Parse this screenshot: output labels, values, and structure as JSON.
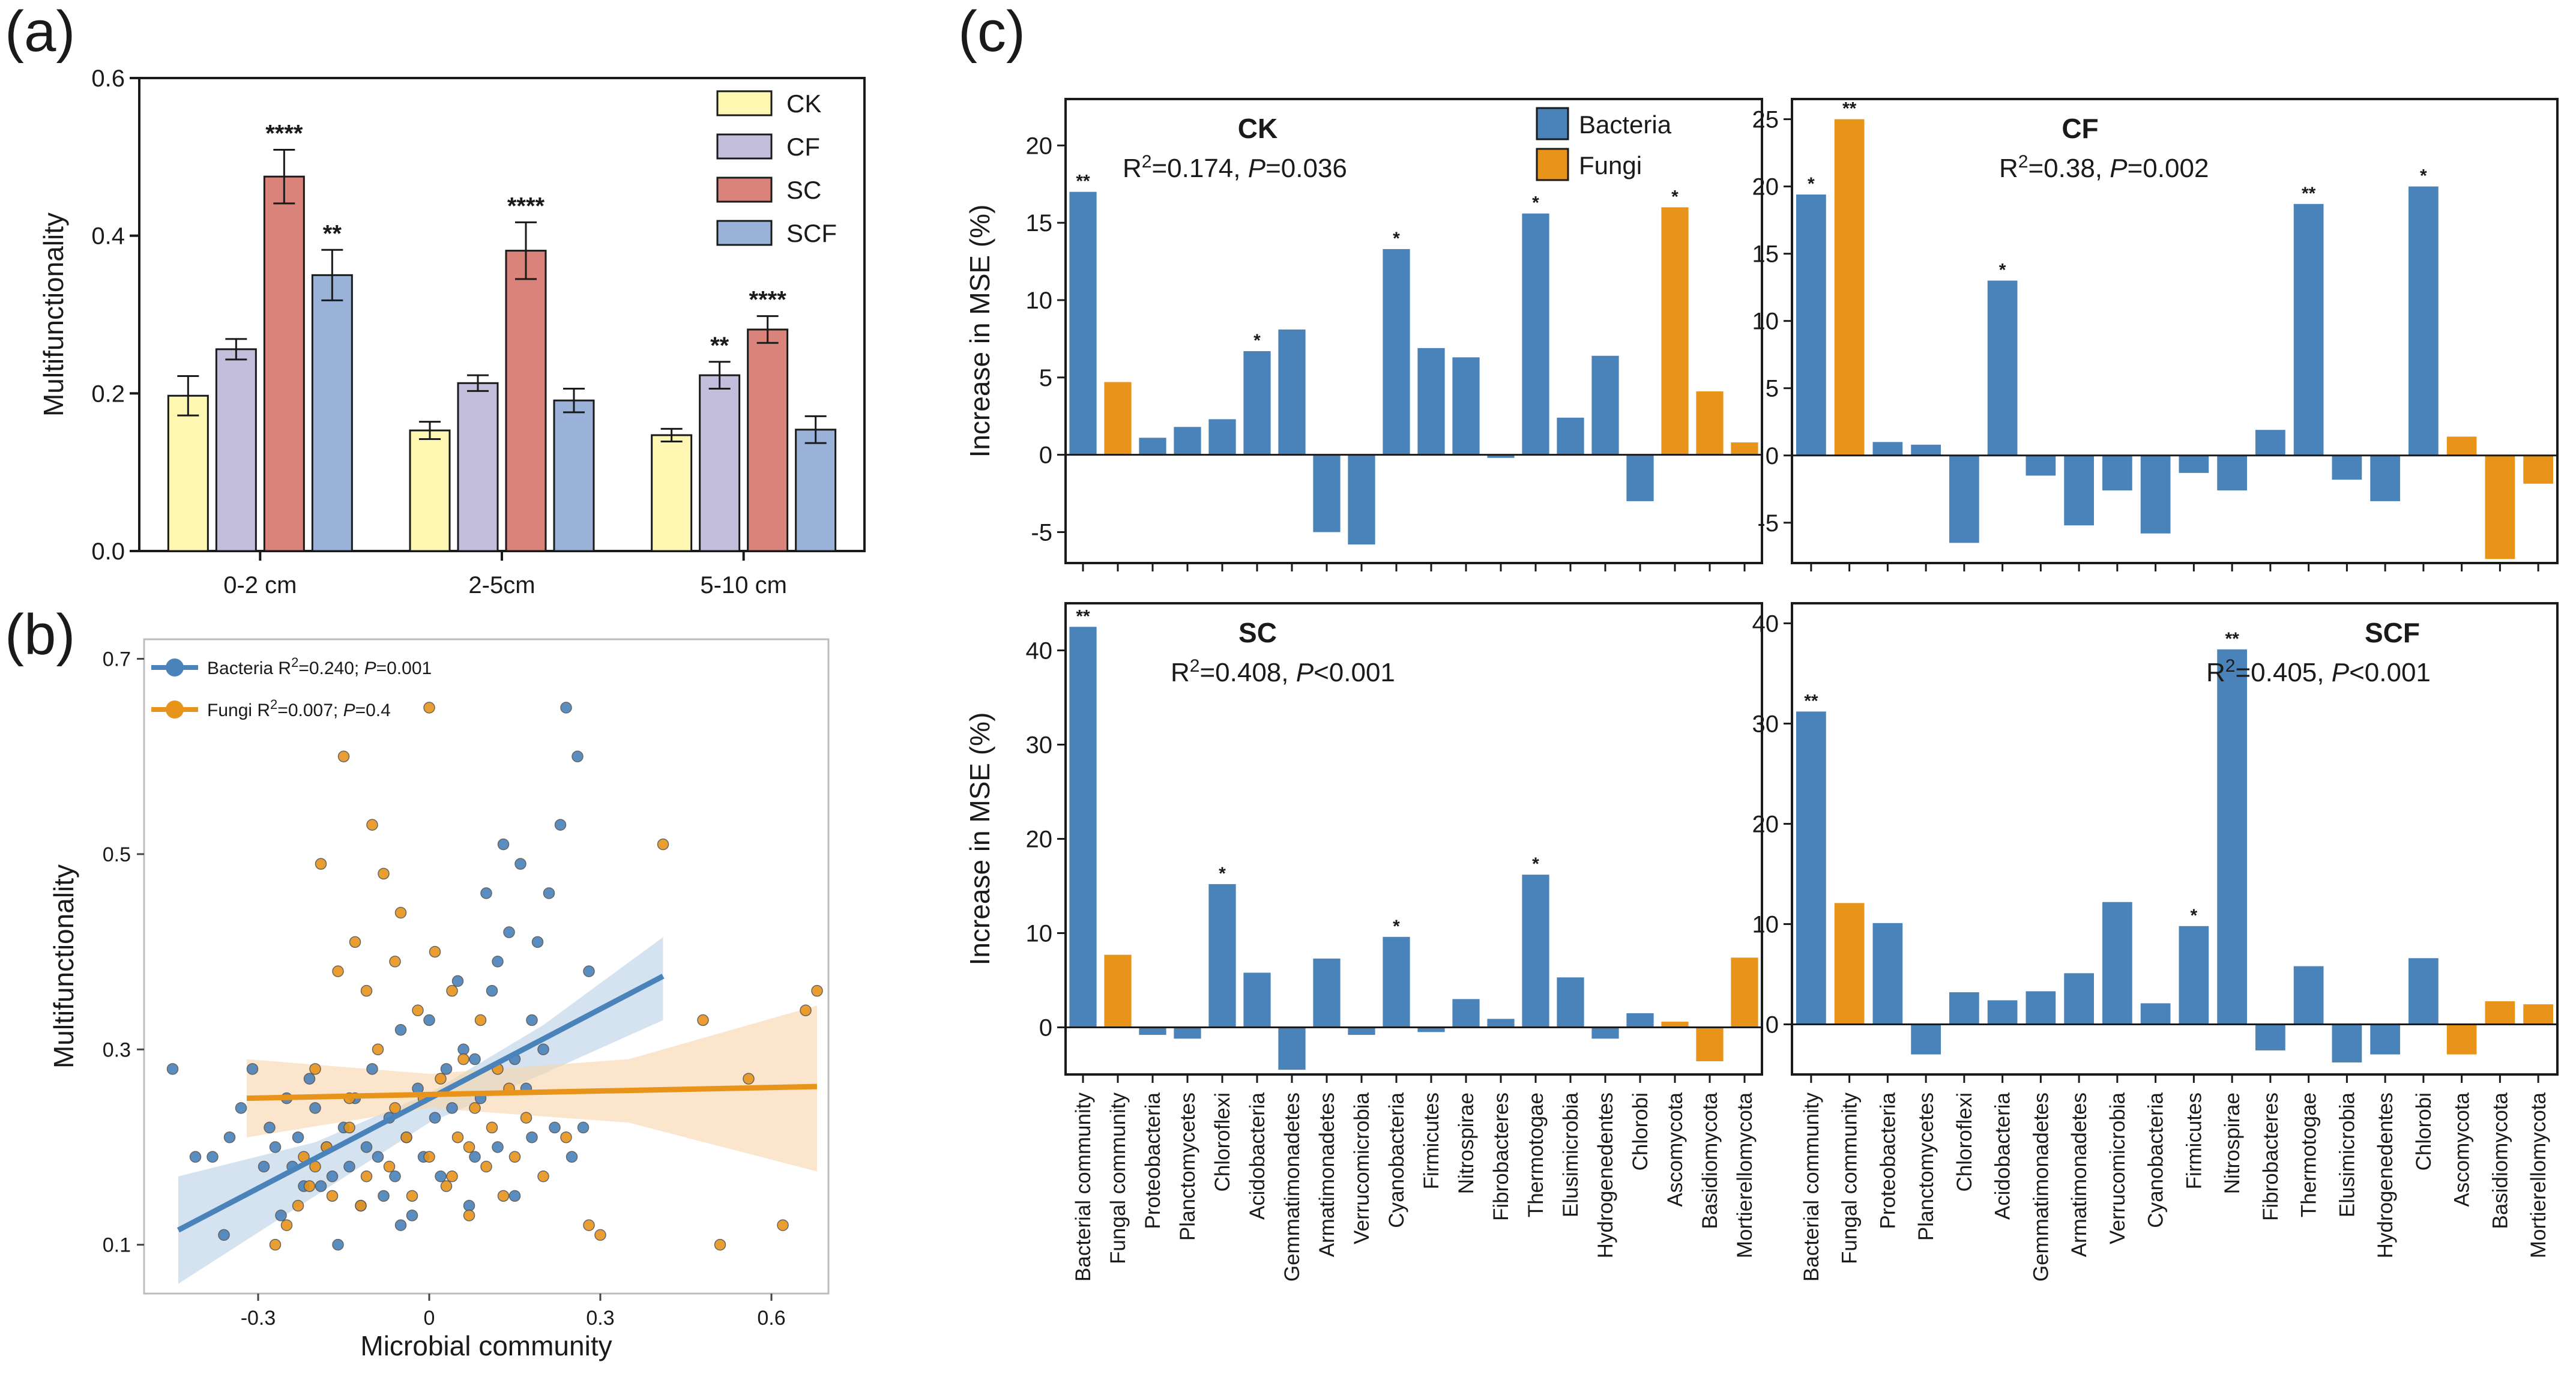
{
  "panel_labels": [
    "(a)",
    "(b)",
    "(c)"
  ],
  "colors": {
    "CK": "#fdf7b2",
    "CF": "#c3bedc",
    "SC": "#d9837a",
    "SCF": "#9bb2d8",
    "bacteria": "#4a82ba",
    "fungi": "#e8931a",
    "bacteria_band": "#b9d0e6",
    "fungi_band": "#f8d6ab",
    "axis": "#1a1a1a"
  },
  "chart_data": [
    {
      "id": "a",
      "type": "bar",
      "title": "",
      "xlabel": "",
      "ylabel": "Multifunctionality",
      "ylim": [
        0,
        0.6
      ],
      "yticks": [
        "0.0",
        "0.2",
        "0.4",
        "0.6"
      ],
      "yticks_values": [
        0,
        0.2,
        0.4,
        0.6
      ],
      "categories": [
        "0-2 cm",
        "2-5cm",
        "5-10 cm"
      ],
      "legend": "top-right",
      "series": [
        {
          "name": "CK",
          "values": [
            0.197,
            0.153,
            0.147
          ],
          "errors": [
            0.025,
            0.011,
            0.008
          ],
          "sig": [
            "",
            "",
            ""
          ]
        },
        {
          "name": "CF",
          "values": [
            0.256,
            0.213,
            0.223
          ],
          "errors": [
            0.013,
            0.01,
            0.017
          ],
          "sig": [
            "",
            "",
            "**"
          ]
        },
        {
          "name": "SC",
          "values": [
            0.475,
            0.381,
            0.281
          ],
          "errors": [
            0.034,
            0.036,
            0.017
          ],
          "sig": [
            "****",
            "****",
            "****"
          ]
        },
        {
          "name": "SCF",
          "values": [
            0.35,
            0.191,
            0.154
          ],
          "errors": [
            0.032,
            0.015,
            0.017
          ],
          "sig": [
            "**",
            "",
            ""
          ]
        }
      ]
    },
    {
      "id": "b",
      "type": "scatter",
      "xlabel": "Microbial community",
      "ylabel": "Multifunctionality",
      "xlim": [
        -0.5,
        0.7
      ],
      "ylim": [
        0.05,
        0.72
      ],
      "xticks": [
        "-0.3",
        "0",
        "0.3",
        "0.6"
      ],
      "xticks_values": [
        -0.3,
        0,
        0.3,
        0.6
      ],
      "yticks": [
        "0.1",
        "0.3",
        "0.5",
        "0.7"
      ],
      "yticks_values": [
        0.1,
        0.3,
        0.5,
        0.7
      ],
      "legend": "top-left",
      "series": [
        {
          "name": "Bacteria",
          "legend_prefix": "Bacteria R",
          "legend_stat": "=0.240;",
          "legend_p": "=0.001",
          "fit": {
            "x": [
              -0.44,
              0.41
            ],
            "y": [
              0.115,
              0.375
            ]
          },
          "band": {
            "x": [
              -0.44,
              -0.2,
              0,
              0.2,
              0.41
            ],
            "lower": [
              0.06,
              0.15,
              0.225,
              0.275,
              0.33
            ],
            "upper": [
              0.17,
              0.205,
              0.255,
              0.325,
              0.415
            ]
          },
          "points": [
            [
              -0.45,
              0.28
            ],
            [
              -0.41,
              0.19
            ],
            [
              -0.38,
              0.19
            ],
            [
              -0.36,
              0.11
            ],
            [
              -0.35,
              0.21
            ],
            [
              -0.33,
              0.24
            ],
            [
              -0.31,
              0.28
            ],
            [
              -0.29,
              0.18
            ],
            [
              -0.28,
              0.22
            ],
            [
              -0.27,
              0.2
            ],
            [
              -0.26,
              0.13
            ],
            [
              -0.25,
              0.25
            ],
            [
              -0.24,
              0.18
            ],
            [
              -0.23,
              0.21
            ],
            [
              -0.22,
              0.16
            ],
            [
              -0.21,
              0.27
            ],
            [
              -0.2,
              0.24
            ],
            [
              -0.19,
              0.16
            ],
            [
              -0.18,
              0.2
            ],
            [
              -0.17,
              0.17
            ],
            [
              -0.16,
              0.1
            ],
            [
              -0.15,
              0.22
            ],
            [
              -0.14,
              0.18
            ],
            [
              -0.13,
              0.25
            ],
            [
              -0.12,
              0.14
            ],
            [
              -0.11,
              0.2
            ],
            [
              -0.1,
              0.28
            ],
            [
              -0.09,
              0.19
            ],
            [
              -0.08,
              0.15
            ],
            [
              -0.07,
              0.23
            ],
            [
              -0.06,
              0.17
            ],
            [
              -0.05,
              0.32
            ],
            [
              -0.04,
              0.21
            ],
            [
              -0.03,
              0.13
            ],
            [
              -0.02,
              0.26
            ],
            [
              -0.01,
              0.19
            ],
            [
              0,
              0.33
            ],
            [
              0.01,
              0.23
            ],
            [
              0.02,
              0.17
            ],
            [
              0.03,
              0.28
            ],
            [
              0.04,
              0.24
            ],
            [
              0.05,
              0.37
            ],
            [
              0.06,
              0.3
            ],
            [
              0.07,
              0.14
            ],
            [
              0.08,
              0.29
            ],
            [
              0.09,
              0.25
            ],
            [
              0.1,
              0.46
            ],
            [
              0.11,
              0.36
            ],
            [
              0.12,
              0.2
            ],
            [
              0.13,
              0.51
            ],
            [
              0.14,
              0.42
            ],
            [
              0.15,
              0.29
            ],
            [
              0.16,
              0.49
            ],
            [
              0.17,
              0.26
            ],
            [
              0.18,
              0.33
            ],
            [
              0.19,
              0.41
            ],
            [
              0.2,
              0.3
            ],
            [
              0.21,
              0.46
            ],
            [
              0.22,
              0.22
            ],
            [
              0.23,
              0.53
            ],
            [
              0.24,
              0.65
            ],
            [
              0.25,
              0.19
            ],
            [
              0.26,
              0.6
            ],
            [
              0.27,
              0.22
            ],
            [
              0.28,
              0.38
            ],
            [
              0.15,
              0.15
            ],
            [
              -0.05,
              0.12
            ],
            [
              0.12,
              0.39
            ],
            [
              0.18,
              0.21
            ],
            [
              0.08,
              0.19
            ]
          ]
        },
        {
          "name": "Fungi",
          "legend_prefix": "Fungi R",
          "legend_stat": "=0.007;",
          "legend_p": "=0.4",
          "fit": {
            "x": [
              -0.32,
              0.68
            ],
            "y": [
              0.25,
              0.262
            ]
          },
          "band": {
            "x": [
              -0.32,
              0,
              0.35,
              0.68
            ],
            "lower": [
              0.21,
              0.24,
              0.225,
              0.175
            ],
            "upper": [
              0.29,
              0.275,
              0.29,
              0.345
            ]
          },
          "points": [
            [
              -0.27,
              0.1
            ],
            [
              -0.25,
              0.12
            ],
            [
              -0.23,
              0.14
            ],
            [
              -0.21,
              0.16
            ],
            [
              -0.2,
              0.28
            ],
            [
              -0.19,
              0.49
            ],
            [
              -0.18,
              0.2
            ],
            [
              -0.17,
              0.15
            ],
            [
              -0.16,
              0.38
            ],
            [
              -0.15,
              0.6
            ],
            [
              -0.14,
              0.22
            ],
            [
              -0.13,
              0.41
            ],
            [
              -0.12,
              0.14
            ],
            [
              -0.11,
              0.36
            ],
            [
              -0.1,
              0.53
            ],
            [
              -0.09,
              0.3
            ],
            [
              -0.08,
              0.48
            ],
            [
              -0.07,
              0.18
            ],
            [
              -0.06,
              0.39
            ],
            [
              -0.05,
              0.44
            ],
            [
              -0.04,
              0.21
            ],
            [
              -0.03,
              0.15
            ],
            [
              -0.02,
              0.34
            ],
            [
              -0.01,
              0.25
            ],
            [
              0,
              0.19
            ],
            [
              0.01,
              0.4
            ],
            [
              0.02,
              0.27
            ],
            [
              0.03,
              0.16
            ],
            [
              0.04,
              0.36
            ],
            [
              0.05,
              0.21
            ],
            [
              0.06,
              0.29
            ],
            [
              0.07,
              0.13
            ],
            [
              0.08,
              0.24
            ],
            [
              0.09,
              0.33
            ],
            [
              0.1,
              0.18
            ],
            [
              0.11,
              0.22
            ],
            [
              0.12,
              0.28
            ],
            [
              0.13,
              0.15
            ],
            [
              0.14,
              0.26
            ],
            [
              0.15,
              0.19
            ],
            [
              0.17,
              0.23
            ],
            [
              0.2,
              0.17
            ],
            [
              0.24,
              0.21
            ],
            [
              0.28,
              0.12
            ],
            [
              0.3,
              0.11
            ],
            [
              0.41,
              0.51
            ],
            [
              0.48,
              0.33
            ],
            [
              0.51,
              0.1
            ],
            [
              0.56,
              0.27
            ],
            [
              0.62,
              0.12
            ],
            [
              0.66,
              0.34
            ],
            [
              0.68,
              0.36
            ],
            [
              0,
              0.65
            ],
            [
              -0.2,
              0.18
            ],
            [
              -0.22,
              0.19
            ],
            [
              -0.11,
              0.17
            ],
            [
              0.04,
              0.17
            ],
            [
              -0.14,
              0.25
            ],
            [
              0.07,
              0.2
            ],
            [
              -0.06,
              0.24
            ]
          ]
        }
      ]
    },
    {
      "id": "c",
      "type": "bar",
      "ylabel": "Increase in MSE (%)",
      "categories": [
        "Bacterial community",
        "Fungal community",
        "Proteobacteria",
        "Planctomycetes",
        "Chloroflexi",
        "Acidobacteria",
        "Gemmatimonadetes",
        "Armatimonadetes",
        "Verrucomicrobia",
        "Cyanobacteria",
        "Firmicutes",
        "Nitrospirae",
        "Fibrobacteres",
        "Thermotogae",
        "Elusimicrobia",
        "Hydrogenedentes",
        "Chlorobi",
        "Ascomycota",
        "Basidiomycota",
        "Mortierellomycota"
      ],
      "bar_groups": [
        "bacteria",
        "fungi",
        "bacteria",
        "bacteria",
        "bacteria",
        "bacteria",
        "bacteria",
        "bacteria",
        "bacteria",
        "bacteria",
        "bacteria",
        "bacteria",
        "bacteria",
        "bacteria",
        "bacteria",
        "bacteria",
        "bacteria",
        "fungi",
        "fungi",
        "fungi"
      ],
      "legend": "top-center",
      "legend_items": [
        "Bacteria",
        "Fungi"
      ],
      "panels": [
        {
          "name": "CK",
          "stat_r": "R",
          "stat_mid": "=0.174, ",
          "stat_p": "P",
          "stat_end": "=0.036",
          "ylim": [
            -7,
            23
          ],
          "yticks": [
            "-5",
            "0",
            "5",
            "10",
            "15",
            "20"
          ],
          "yticks_values": [
            -5,
            0,
            5,
            10,
            15,
            20
          ],
          "values": [
            17,
            4.7,
            1.1,
            1.8,
            2.3,
            6.7,
            8.1,
            -5.0,
            -5.8,
            13.3,
            6.9,
            6.3,
            -0.2,
            15.6,
            2.4,
            6.4,
            -3.0,
            16.0,
            4.1,
            0.8
          ],
          "sig": [
            "**",
            "",
            "",
            "",
            "",
            "*",
            "",
            "",
            "",
            "*",
            "",
            "",
            "",
            "*",
            "",
            "",
            "",
            "*",
            "",
            ""
          ]
        },
        {
          "name": "CF",
          "stat_r": "R",
          "stat_mid": "=0.38, ",
          "stat_p": "P",
          "stat_end": "=0.002",
          "ylim": [
            -8,
            26.5
          ],
          "yticks": [
            "-5",
            "0",
            "5",
            "10",
            "15",
            "20",
            "25"
          ],
          "yticks_values": [
            -5,
            0,
            5,
            10,
            15,
            20,
            25
          ],
          "values": [
            19.4,
            25.0,
            1.0,
            0.8,
            -6.5,
            13.0,
            -1.5,
            -5.2,
            -2.6,
            -5.8,
            -1.3,
            -2.6,
            1.9,
            18.7,
            -1.8,
            -3.4,
            20.0,
            1.4,
            -7.7,
            -2.1
          ],
          "sig": [
            "*",
            "**",
            "",
            "",
            "",
            "*",
            "",
            "",
            "",
            "",
            "",
            "",
            "",
            "**",
            "",
            "",
            "*",
            "",
            "",
            ""
          ]
        },
        {
          "name": "SC",
          "stat_r": "R",
          "stat_mid": "=0.408, ",
          "stat_p": "P",
          "stat_end": "<0.001",
          "ylim": [
            -5,
            45
          ],
          "yticks": [
            "0",
            "10",
            "20",
            "30",
            "40"
          ],
          "yticks_values": [
            0,
            10,
            20,
            30,
            40
          ],
          "values": [
            42.5,
            7.7,
            -0.8,
            -1.2,
            15.2,
            5.8,
            -4.5,
            7.3,
            -0.8,
            9.6,
            -0.5,
            3.0,
            0.9,
            16.2,
            5.3,
            -1.2,
            1.5,
            0.6,
            -3.6,
            7.4
          ],
          "sig": [
            "**",
            "",
            "",
            "",
            "*",
            "",
            "",
            "",
            "",
            "*",
            "",
            "",
            "",
            "*",
            "",
            "",
            "",
            "",
            "",
            ""
          ]
        },
        {
          "name": "SCF",
          "stat_r": "R",
          "stat_mid": "=0.405, ",
          "stat_p": "P",
          "stat_end": "<0.001",
          "ylim": [
            -5,
            42
          ],
          "yticks": [
            "0",
            "10",
            "20",
            "30",
            "40"
          ],
          "yticks_values": [
            0,
            10,
            20,
            30,
            40
          ],
          "values": [
            31.2,
            12.1,
            10.1,
            -3.0,
            3.2,
            2.4,
            3.3,
            5.1,
            12.2,
            2.1,
            9.8,
            37.4,
            -2.6,
            5.8,
            -3.8,
            -3.0,
            6.6,
            -3.0,
            2.3,
            2.0
          ],
          "sig": [
            "**",
            "",
            "",
            "",
            "",
            "",
            "",
            "",
            "",
            "",
            "*",
            "**",
            "",
            "",
            "",
            "",
            "",
            "",
            "",
            ""
          ]
        }
      ]
    }
  ]
}
